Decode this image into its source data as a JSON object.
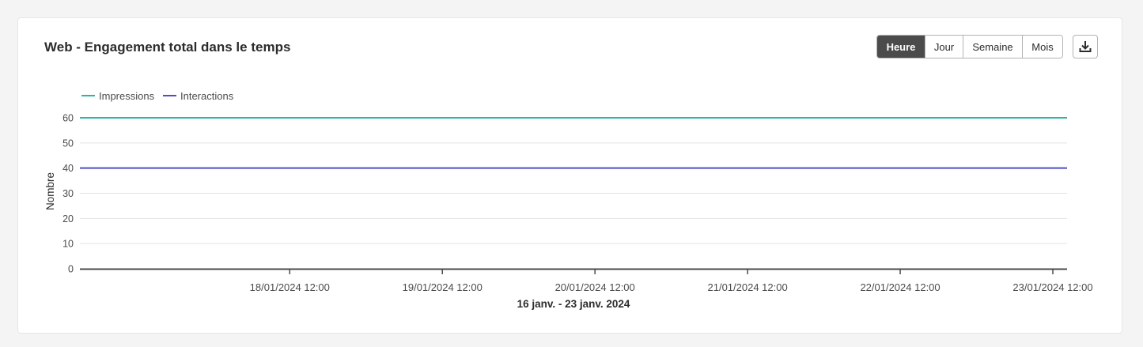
{
  "card": {
    "title": "Web - Engagement total dans le temps"
  },
  "granularity": {
    "options": [
      "Heure",
      "Jour",
      "Semaine",
      "Mois"
    ],
    "selected": "Heure"
  },
  "download_icon": "download-icon",
  "colors": {
    "impressions": "#2bb5a6",
    "interactions": "#4f4fc2",
    "grid": "#e3e3e3",
    "axis": "#4b4b4b"
  },
  "chart_data": {
    "type": "line",
    "title": "Web - Engagement total dans le temps",
    "xlabel": "16 janv. - 23 janv. 2024",
    "ylabel": "Nombre",
    "ylim": [
      0,
      60
    ],
    "yticks": [
      0,
      10,
      20,
      30,
      40,
      50,
      60
    ],
    "x_range": [
      "17/01/2024 03:00",
      "23/01/2024 12:00"
    ],
    "x_tick_labels": [
      "18/01/2024 12:00",
      "19/01/2024 12:00",
      "20/01/2024 12:00",
      "21/01/2024 12:00",
      "22/01/2024 12:00",
      "23/01/2024 12:00"
    ],
    "x_tick_values_hours": [
      33,
      57,
      81,
      105,
      129,
      153
    ],
    "x_domain_hours": [
      0,
      153
    ],
    "grid": true,
    "legend": "top-left",
    "series": [
      {
        "name": "Impressions",
        "values": [
          60,
          60
        ],
        "color": "#2bb5a6"
      },
      {
        "name": "Interactions",
        "values": [
          40,
          40
        ],
        "color": "#4f4fc2"
      }
    ]
  }
}
